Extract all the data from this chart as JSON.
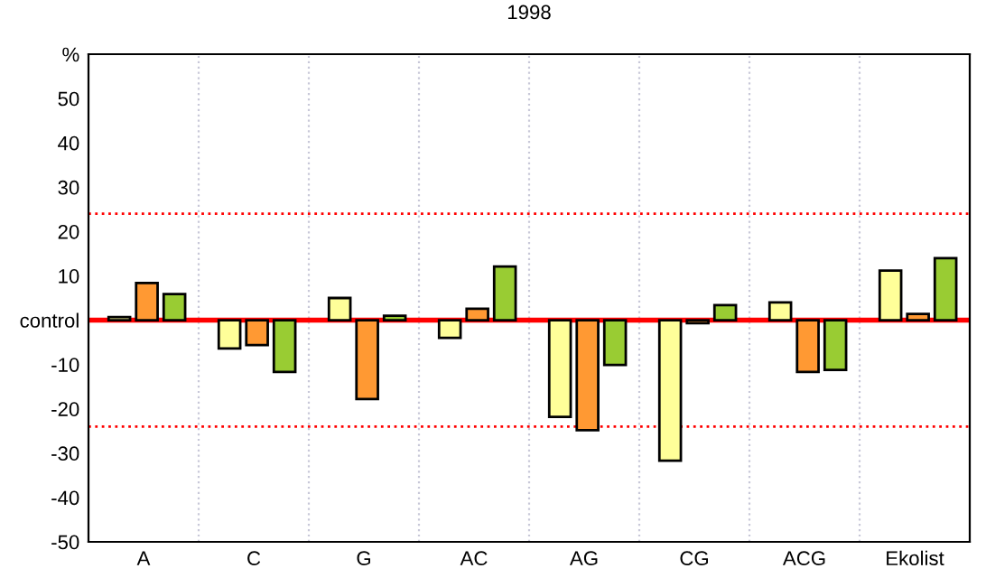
{
  "chart_data": {
    "type": "bar",
    "title": "1998",
    "categories": [
      "A",
      "C",
      "G",
      "AC",
      "AG",
      "CG",
      "ACG",
      "Ekolist"
    ],
    "series": [
      {
        "color": "#ffff99",
        "values": [
          0.7,
          -6.4,
          5.0,
          -4.0,
          -21.8,
          -31.7,
          4.0,
          11.2
        ]
      },
      {
        "color": "#ff9933",
        "values": [
          8.4,
          -5.6,
          -17.8,
          2.6,
          -24.8,
          -0.7,
          -11.7,
          1.4
        ]
      },
      {
        "color": "#99cc33",
        "values": [
          5.9,
          -11.7,
          1.0,
          12.1,
          -10.1,
          3.4,
          -11.2,
          14.0
        ]
      }
    ],
    "ylim": [
      -50,
      60
    ],
    "yticks": [
      -50,
      -40,
      -30,
      -20,
      -10,
      {
        "value": 0,
        "label": "control"
      },
      10,
      20,
      30,
      40,
      50,
      {
        "value": 60,
        "label": "%"
      }
    ],
    "ref_lines": [
      {
        "axis": "y",
        "value": 0,
        "color": "#ff0000",
        "line_style": "solid"
      },
      {
        "axis": "y",
        "value": 24,
        "color": "#ff0000",
        "line_style": "dotted"
      },
      {
        "axis": "y",
        "value": -24,
        "color": "#ff0000",
        "line_style": "dotted"
      }
    ],
    "grid": "x",
    "legend": false
  }
}
